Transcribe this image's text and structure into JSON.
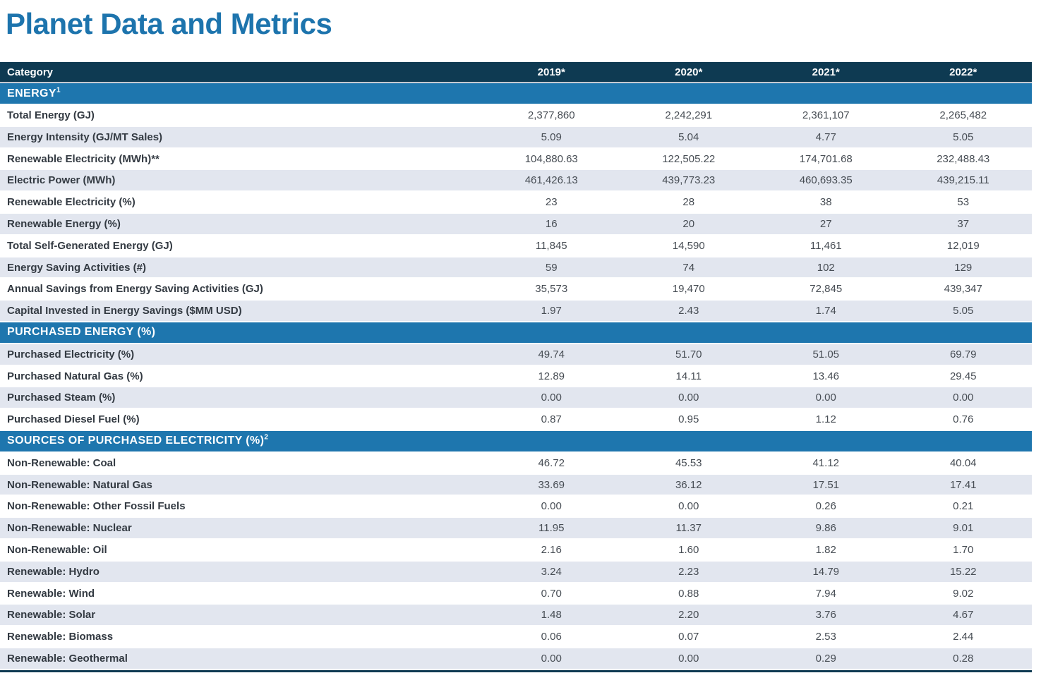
{
  "page": {
    "title": "Planet Data and Metrics"
  },
  "colors": {
    "title_blue": "#1d74ad",
    "header_navy": "#0e3a52",
    "section_blue": "#1e76ae",
    "row_shaded": "#e2e6ef",
    "label_text": "#333a42",
    "value_text": "#474d54"
  },
  "table": {
    "columns": [
      "Category",
      "2019*",
      "2020*",
      "2021*",
      "2022*"
    ],
    "sections": [
      {
        "label": "ENERGY",
        "superscript": "1",
        "rows": [
          {
            "label": "Total Energy (GJ)",
            "shaded": false,
            "values": [
              "2,377,860",
              "2,242,291",
              "2,361,107",
              "2,265,482"
            ]
          },
          {
            "label": "Energy Intensity (GJ/MT Sales)",
            "shaded": true,
            "values": [
              "5.09",
              "5.04",
              "4.77",
              "5.05"
            ]
          },
          {
            "label": "Renewable Electricity (MWh)**",
            "shaded": false,
            "values": [
              "104,880.63",
              "122,505.22",
              "174,701.68",
              "232,488.43"
            ]
          },
          {
            "label": "Electric Power (MWh)",
            "shaded": true,
            "values": [
              "461,426.13",
              "439,773.23",
              "460,693.35",
              "439,215.11"
            ]
          },
          {
            "label": "Renewable Electricity (%)",
            "shaded": false,
            "values": [
              "23",
              "28",
              "38",
              "53"
            ]
          },
          {
            "label": "Renewable Energy (%)",
            "shaded": true,
            "values": [
              "16",
              "20",
              "27",
              "37"
            ]
          },
          {
            "label": "Total Self-Generated Energy (GJ)",
            "shaded": false,
            "values": [
              "11,845",
              "14,590",
              "11,461",
              "12,019"
            ]
          },
          {
            "label": "Energy Saving Activities (#)",
            "shaded": true,
            "values": [
              "59",
              "74",
              "102",
              "129"
            ]
          },
          {
            "label": "Annual Savings from Energy Saving Activities (GJ)",
            "shaded": false,
            "values": [
              "35,573",
              "19,470",
              "72,845",
              "439,347"
            ]
          },
          {
            "label": "Capital Invested in Energy Savings ($MM USD)",
            "shaded": true,
            "values": [
              "1.97",
              "2.43",
              "1.74",
              "5.05"
            ]
          }
        ]
      },
      {
        "label": "PURCHASED ENERGY (%)",
        "superscript": "",
        "rows": [
          {
            "label": "Purchased Electricity (%)",
            "shaded": true,
            "values": [
              "49.74",
              "51.70",
              "51.05",
              "69.79"
            ]
          },
          {
            "label": "Purchased Natural Gas (%)",
            "shaded": false,
            "values": [
              "12.89",
              "14.11",
              "13.46",
              "29.45"
            ]
          },
          {
            "label": "Purchased Steam (%)",
            "shaded": true,
            "values": [
              "0.00",
              "0.00",
              "0.00",
              "0.00"
            ]
          },
          {
            "label": "Purchased Diesel Fuel (%)",
            "shaded": false,
            "values": [
              "0.87",
              "0.95",
              "1.12",
              "0.76"
            ]
          }
        ]
      },
      {
        "label": "SOURCES OF PURCHASED ELECTRICITY (%)",
        "superscript": "2",
        "rows": [
          {
            "label": "Non-Renewable: Coal",
            "shaded": false,
            "values": [
              "46.72",
              "45.53",
              "41.12",
              "40.04"
            ]
          },
          {
            "label": "Non-Renewable: Natural Gas",
            "shaded": true,
            "values": [
              "33.69",
              "36.12",
              "17.51",
              "17.41"
            ]
          },
          {
            "label": "Non-Renewable: Other Fossil Fuels",
            "shaded": false,
            "values": [
              "0.00",
              "0.00",
              "0.26",
              "0.21"
            ]
          },
          {
            "label": "Non-Renewable: Nuclear",
            "shaded": true,
            "values": [
              "11.95",
              "11.37",
              "9.86",
              "9.01"
            ]
          },
          {
            "label": "Non-Renewable: Oil",
            "shaded": false,
            "values": [
              "2.16",
              "1.60",
              "1.82",
              "1.70"
            ]
          },
          {
            "label": "Renewable: Hydro",
            "shaded": true,
            "values": [
              "3.24",
              "2.23",
              "14.79",
              "15.22"
            ]
          },
          {
            "label": "Renewable: Wind",
            "shaded": false,
            "values": [
              "0.70",
              "0.88",
              "7.94",
              "9.02"
            ]
          },
          {
            "label": "Renewable: Solar",
            "shaded": true,
            "values": [
              "1.48",
              "2.20",
              "3.76",
              "4.67"
            ]
          },
          {
            "label": "Renewable: Biomass",
            "shaded": false,
            "values": [
              "0.06",
              "0.07",
              "2.53",
              "2.44"
            ]
          },
          {
            "label": "Renewable: Geothermal",
            "shaded": true,
            "values": [
              "0.00",
              "0.00",
              "0.29",
              "0.28"
            ]
          }
        ]
      }
    ]
  }
}
